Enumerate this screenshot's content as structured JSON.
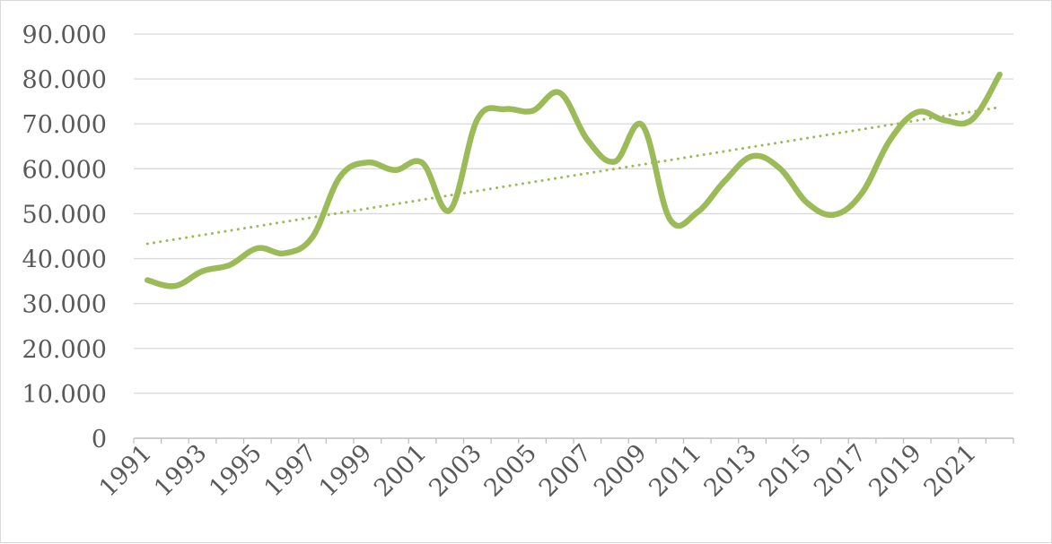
{
  "chart_data": {
    "type": "line",
    "title": "",
    "xlabel": "",
    "ylabel": "",
    "x": [
      1991,
      1992,
      1993,
      1994,
      1995,
      1996,
      1997,
      1998,
      1999,
      2000,
      2001,
      2002,
      2003,
      2004,
      2005,
      2006,
      2007,
      2008,
      2009,
      2010,
      2011,
      2012,
      2013,
      2014,
      2015,
      2016,
      2017,
      2018,
      2019,
      2020,
      2021,
      2022
    ],
    "x_tick_labels": [
      "1991",
      "1993",
      "1995",
      "1997",
      "1999",
      "2001",
      "2003",
      "2005",
      "2007",
      "2009",
      "2011",
      "2013",
      "2015",
      "2017",
      "2019",
      "2021"
    ],
    "y_tick_labels": [
      "0",
      "10.000",
      "20.000",
      "30.000",
      "40.000",
      "50.000",
      "60.000",
      "70.000",
      "80.000",
      "90.000"
    ],
    "ylim": [
      0,
      90000
    ],
    "grid": "horizontal",
    "legend": "none",
    "series": [
      {
        "values": [
          35200,
          33900,
          37200,
          38600,
          42300,
          41200,
          44800,
          58200,
          61400,
          59700,
          61300,
          50800,
          71000,
          73300,
          72900,
          76900,
          66500,
          61600,
          69700,
          48800,
          50300,
          57300,
          62800,
          60100,
          52400,
          49800,
          54700,
          66300,
          72600,
          70800,
          71000,
          81000
        ],
        "color": "#9bbb59",
        "style": "solid-smoothed"
      },
      {
        "kind": "linear-trendline",
        "values_start_end": [
          43300,
          73700
        ],
        "color": "#9bbb59",
        "style": "dotted"
      }
    ]
  }
}
